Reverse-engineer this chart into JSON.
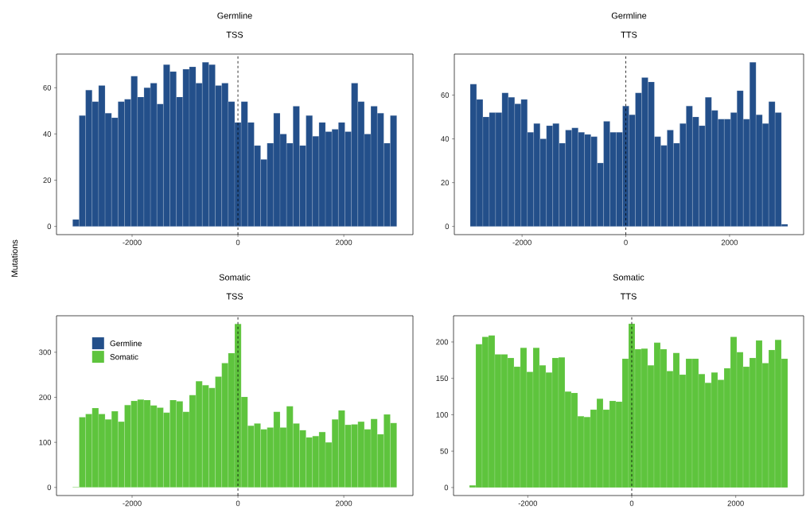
{
  "chart_data": [
    {
      "type": "histogram",
      "title": "Germline",
      "subtitle": "TSS",
      "ylabel": "Mutations",
      "bins": [
        -3122.4,
        -3000,
        -2877.6,
        -2755.1,
        -2632.7,
        -2510.2,
        -2387.8,
        -2265.3,
        -2142.9,
        -2020.4,
        -1898,
        -1775.5,
        -1653.1,
        -1530.6,
        -1408.2,
        -1285.7,
        -1163.3,
        -1040.8,
        -918.4,
        -795.9,
        -673.5,
        -551,
        -428.6,
        -306.1,
        -183.7,
        -61.2,
        61.2,
        183.7,
        306.1,
        428.6,
        551,
        673.5,
        795.9,
        918.4,
        1040.8,
        1163.3,
        1285.7,
        1408.2,
        1530.6,
        1653.1,
        1775.5,
        1898,
        2020.4,
        2142.9,
        2265.3,
        2387.8,
        2510.2,
        2632.7,
        2755.1,
        2877.6,
        3000
      ],
      "series": [
        {
          "name": "Germline",
          "color": "#234f8a",
          "values": [
            3,
            48,
            59,
            54,
            61,
            49,
            47,
            54,
            55,
            65,
            56,
            60,
            62,
            53,
            70,
            67,
            56,
            68,
            69,
            62,
            71,
            70,
            61,
            62,
            54,
            45,
            54,
            45,
            35,
            29,
            36,
            49,
            40,
            36,
            52,
            35,
            48,
            39,
            45,
            41,
            42,
            45,
            41,
            62,
            54,
            40,
            52,
            49,
            36,
            48
          ]
        }
      ],
      "xlim": [
        -3428,
        3306
      ],
      "ylim": [
        -3.55,
        74.55
      ],
      "xticks": [
        -2000,
        0,
        2000
      ],
      "yticks": [
        0,
        20,
        40,
        60
      ],
      "ref_lines": [
        {
          "axis": "x",
          "value": 0,
          "color": "#000000",
          "line_style": "dashed"
        }
      ]
    },
    {
      "type": "histogram",
      "title": "Germline",
      "subtitle": "TTS",
      "bins": [
        -3000,
        -2877.6,
        -2755.1,
        -2632.7,
        -2510.2,
        -2387.8,
        -2265.3,
        -2142.9,
        -2020.4,
        -1898,
        -1775.5,
        -1653.1,
        -1530.6,
        -1408.2,
        -1285.7,
        -1163.3,
        -1040.8,
        -918.4,
        -795.9,
        -673.5,
        -551,
        -428.6,
        -306.1,
        -183.7,
        -61.2,
        61.2,
        183.7,
        306.1,
        428.6,
        551,
        673.5,
        795.9,
        918.4,
        1040.8,
        1163.3,
        1285.7,
        1408.2,
        1530.6,
        1653.1,
        1775.5,
        1898,
        2020.4,
        2142.9,
        2265.3,
        2387.8,
        2510.2,
        2632.7,
        2755.1,
        2877.6,
        3000,
        3122.4
      ],
      "series": [
        {
          "color": "#234f8a",
          "values": [
            65,
            58,
            50,
            52,
            52,
            61,
            59,
            56,
            58,
            43,
            47,
            40,
            46,
            47,
            38,
            44,
            45,
            43,
            42,
            41,
            29,
            48,
            43,
            43,
            55,
            51,
            61,
            68,
            66,
            41,
            37,
            44,
            38,
            47,
            55,
            50,
            46,
            59,
            53,
            49,
            49,
            52,
            62,
            49,
            75,
            51,
            47,
            57,
            52,
            1
          ]
        }
      ],
      "xlim": [
        -3306,
        3428
      ],
      "ylim": [
        -3.75,
        78.75
      ],
      "xticks": [
        -2000,
        0,
        2000
      ],
      "yticks": [
        0,
        20,
        40,
        60
      ],
      "ref_lines": [
        {
          "axis": "x",
          "value": 0,
          "color": "#000000",
          "line_style": "dashed"
        }
      ]
    },
    {
      "type": "histogram",
      "title": "Somatic",
      "subtitle": "TSS",
      "legend": "top left",
      "bins": [
        -3122.4,
        -3000,
        -2877.6,
        -2755.1,
        -2632.7,
        -2510.2,
        -2387.8,
        -2265.3,
        -2142.9,
        -2020.4,
        -1898,
        -1775.5,
        -1653.1,
        -1530.6,
        -1408.2,
        -1285.7,
        -1163.3,
        -1040.8,
        -918.4,
        -795.9,
        -673.5,
        -551,
        -428.6,
        -306.1,
        -183.7,
        -61.2,
        61.2,
        183.7,
        306.1,
        428.6,
        551,
        673.5,
        795.9,
        918.4,
        1040.8,
        1163.3,
        1285.7,
        1408.2,
        1530.6,
        1653.1,
        1775.5,
        1898,
        2020.4,
        2142.9,
        2265.3,
        2387.8,
        2510.2,
        2632.7,
        2755.1,
        2877.6,
        3000
      ],
      "series": [
        {
          "name": "Somatic",
          "color": "#5ec43d",
          "values": [
            1,
            156,
            163,
            176,
            163,
            151,
            169,
            146,
            183,
            192,
            195,
            194,
            182,
            177,
            166,
            194,
            191,
            168,
            205,
            236,
            227,
            221,
            246,
            276,
            298,
            363,
            201,
            137,
            142,
            129,
            133,
            168,
            133,
            180,
            142,
            127,
            111,
            114,
            123,
            100,
            151,
            171,
            139,
            140,
            146,
            129,
            152,
            118,
            162,
            143
          ]
        }
      ],
      "xlim": [
        -3428,
        3306
      ],
      "ylim": [
        -18,
        381
      ],
      "xticks": [
        -2000,
        0,
        2000
      ],
      "yticks": [
        0,
        100,
        200,
        300
      ],
      "ref_lines": [
        {
          "axis": "x",
          "value": 0,
          "color": "#000000",
          "line_style": "dashed"
        }
      ]
    },
    {
      "type": "histogram",
      "title": "Somatic",
      "subtitle": "TTS",
      "bins": [
        -3122.4,
        -3000,
        -2877.6,
        -2755.1,
        -2632.7,
        -2510.2,
        -2387.8,
        -2265.3,
        -2142.9,
        -2020.4,
        -1898,
        -1775.5,
        -1653.1,
        -1530.6,
        -1408.2,
        -1285.7,
        -1163.3,
        -1040.8,
        -918.4,
        -795.9,
        -673.5,
        -551,
        -428.6,
        -306.1,
        -183.7,
        -61.2,
        61.2,
        183.7,
        306.1,
        428.6,
        551,
        673.5,
        795.9,
        918.4,
        1040.8,
        1163.3,
        1285.7,
        1408.2,
        1530.6,
        1653.1,
        1775.5,
        1898,
        2020.4,
        2142.9,
        2265.3,
        2387.8,
        2510.2,
        2632.7,
        2755.1,
        2877.6,
        3000
      ],
      "series": [
        {
          "color": "#5ec43d",
          "values": [
            3,
            197,
            207,
            209,
            183,
            183,
            178,
            166,
            192,
            159,
            192,
            168,
            158,
            178,
            179,
            132,
            130,
            98,
            97,
            107,
            122,
            107,
            119,
            118,
            177,
            225,
            190,
            191,
            168,
            199,
            190,
            160,
            185,
            155,
            177,
            177,
            156,
            144,
            158,
            148,
            164,
            207,
            186,
            166,
            178,
            202,
            171,
            189,
            203,
            177
          ]
        }
      ],
      "xlim": [
        -3428,
        3306
      ],
      "ylim": [
        -11,
        236
      ],
      "xticks": [
        -2000,
        0,
        2000
      ],
      "yticks": [
        0,
        50,
        100,
        150,
        200
      ],
      "ref_lines": [
        {
          "axis": "x",
          "value": 0,
          "color": "#000000",
          "line_style": "dashed"
        }
      ]
    }
  ]
}
